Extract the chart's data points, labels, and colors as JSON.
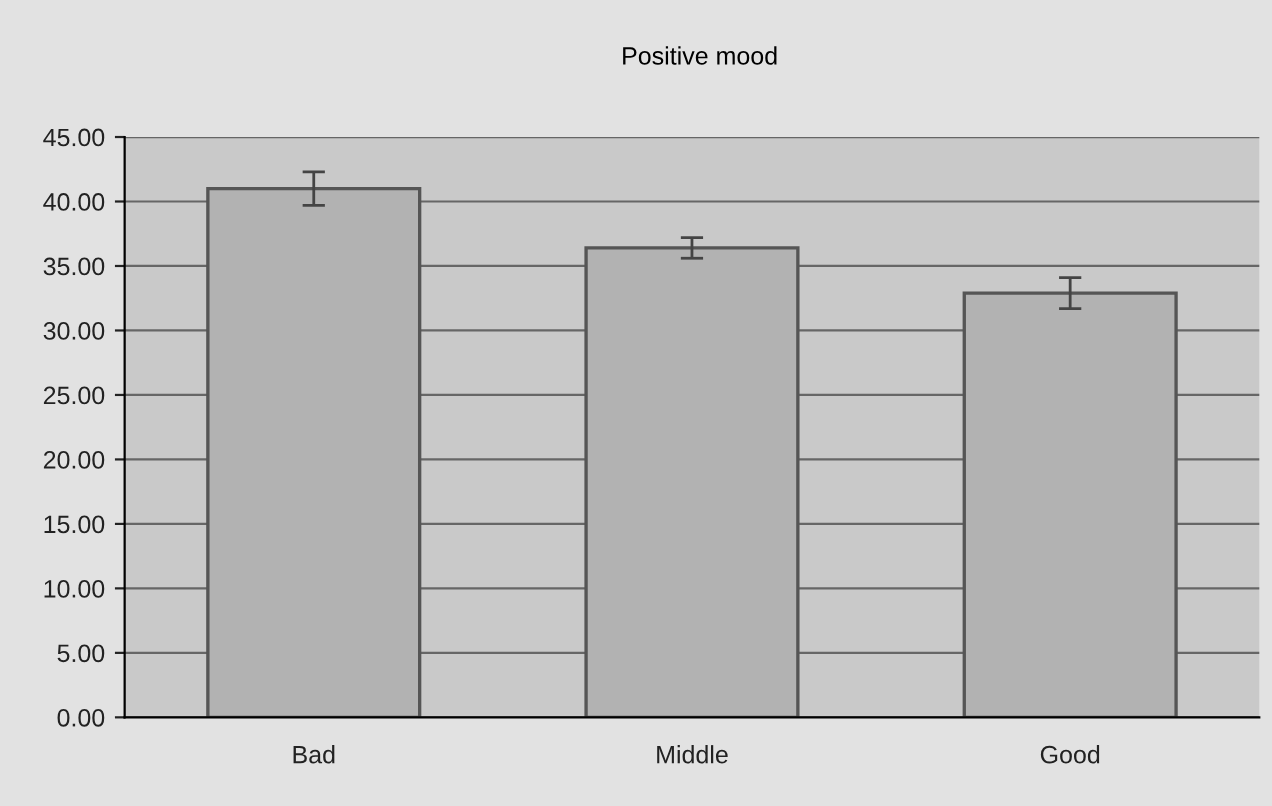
{
  "chart_data": {
    "type": "bar",
    "title": "Positive mood",
    "categories": [
      "Bad",
      "Middle",
      "Good"
    ],
    "values": [
      41.0,
      36.4,
      32.9
    ],
    "errors": [
      1.3,
      0.8,
      1.2
    ],
    "color": "#b2b2b2",
    "ylim": [
      0,
      45
    ],
    "yticks": [
      {
        "value": 0,
        "label": "0.00"
      },
      {
        "value": 5,
        "label": "5.00"
      },
      {
        "value": 10,
        "label": "10.00"
      },
      {
        "value": 15,
        "label": "15.00"
      },
      {
        "value": 20,
        "label": "20.00"
      },
      {
        "value": 25,
        "label": "25.00"
      },
      {
        "value": 30,
        "label": "30.00"
      },
      {
        "value": 35,
        "label": "35.00"
      },
      {
        "value": 40,
        "label": "40.00"
      },
      {
        "value": 45,
        "label": "45.00"
      }
    ],
    "grid": "y",
    "legend": false
  }
}
